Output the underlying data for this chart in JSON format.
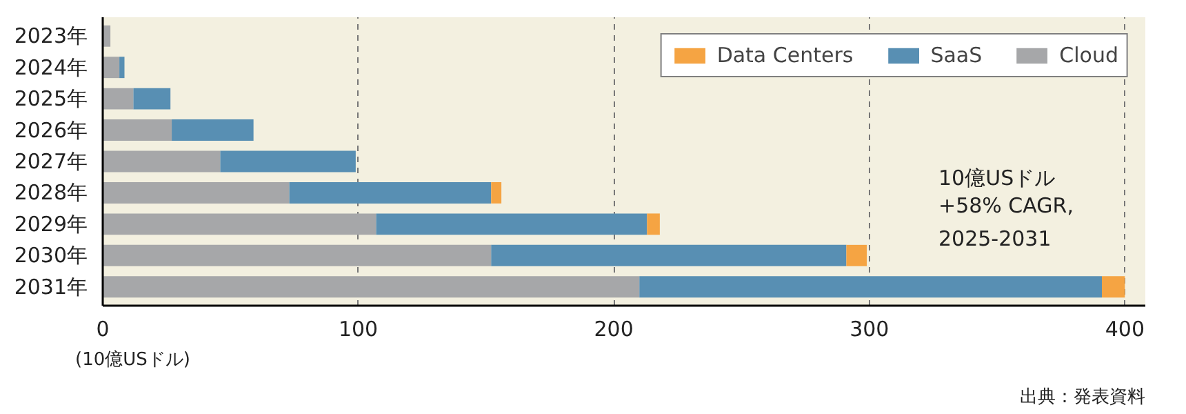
{
  "chart_data": {
    "type": "bar",
    "orientation": "horizontal",
    "stacked": true,
    "categories": [
      "2023年",
      "2024年",
      "2025年",
      "2026年",
      "2027年",
      "2028年",
      "2029年",
      "2030年",
      "2031年"
    ],
    "series": [
      {
        "name": "Cloud",
        "color": "#a6a7a9",
        "values": [
          3,
          6.5,
          12,
          27,
          46,
          73,
          107,
          152,
          210
        ]
      },
      {
        "name": "SaaS",
        "color": "#588fb3",
        "values": [
          0,
          2,
          14.5,
          32,
          53,
          79,
          106,
          139,
          181
        ]
      },
      {
        "name": "Data Centers",
        "color": "#f5a443",
        "values": [
          0,
          0,
          0,
          0,
          0,
          4,
          5,
          8,
          9
        ]
      }
    ],
    "xlim": [
      0,
      408
    ],
    "xticks": [
      0,
      100,
      200,
      300,
      400
    ],
    "xlabel": "(10億USドル)",
    "grid": "x",
    "legend": "top right",
    "annotations": [
      "10億USドル\n+58% CAGR,\n2025-2031",
      "出典：発表資料"
    ]
  }
}
